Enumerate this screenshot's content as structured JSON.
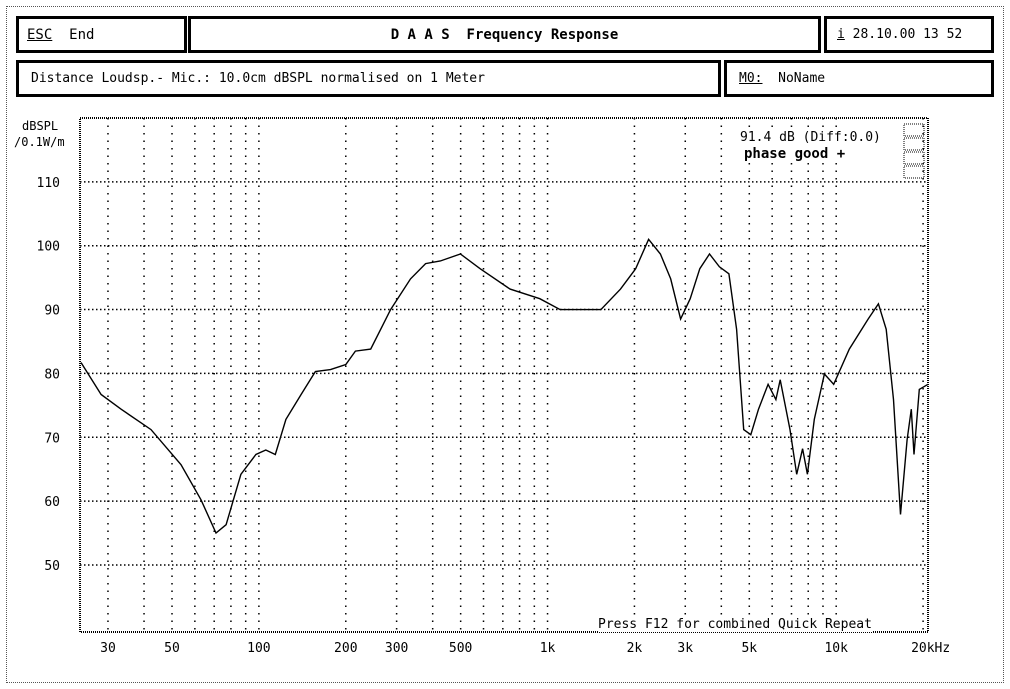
{
  "header": {
    "esc_key": "ESC",
    "esc_label": "End",
    "title": "D A A S  Frequency Response",
    "info_key": "i",
    "datetime": "28.10.00 13 52"
  },
  "info_bar": {
    "description": "Distance Loudsp.- Mic.: 10.0cm dBSPL normalised on 1 Meter",
    "memory_key": "M0:",
    "memory_name": "NoName"
  },
  "chart_data": {
    "type": "line",
    "ylabel_line1": "dBSPL",
    "ylabel_line2": "/0.1W/m",
    "xscale": "log",
    "xlim": [
      24,
      20800
    ],
    "ylim": [
      39.5,
      120
    ],
    "grid": true,
    "y_ticks": [
      50,
      60,
      70,
      80,
      90,
      100,
      110
    ],
    "x_ticks": [
      {
        "value": 30,
        "label": "30"
      },
      {
        "value": 50,
        "label": "50"
      },
      {
        "value": 100,
        "label": "100"
      },
      {
        "value": 200,
        "label": "200"
      },
      {
        "value": 300,
        "label": "300"
      },
      {
        "value": 500,
        "label": "500"
      },
      {
        "value": 1000,
        "label": "1k"
      },
      {
        "value": 2000,
        "label": "2k"
      },
      {
        "value": 3000,
        "label": "3k"
      },
      {
        "value": 5000,
        "label": "5k"
      },
      {
        "value": 10000,
        "label": "10k"
      },
      {
        "value": 20000,
        "label": "20kHz"
      }
    ],
    "annotation_level": "91.4 dB (Diff:0.0)",
    "annotation_phase": "phase good +",
    "footer_note": "Press F12 for combined Quick Repeat",
    "line_color": "#000000",
    "series": [
      {
        "x": [
          24.2,
          28.4,
          33.3,
          42.3,
          53.7,
          63,
          71,
          77,
          86.6,
          97.6,
          105.7,
          114,
          124,
          140,
          157,
          177,
          200,
          216,
          244,
          286,
          335,
          378,
          425,
          499,
          584,
          742,
          940,
          1105,
          1530,
          1790,
          2020,
          2240,
          2460,
          2670,
          2890,
          3120,
          3370,
          3640,
          3940,
          4250,
          4520,
          4780,
          5060,
          5380,
          5810,
          6180,
          6400,
          6920,
          7300,
          7650,
          7950,
          8400,
          9100,
          9800,
          11100,
          12900,
          14000,
          14900,
          15800,
          16700,
          17600,
          18200,
          18600,
          19400,
          20800
        ],
        "y": [
          81.7,
          76.7,
          74.4,
          71.2,
          65.7,
          60.2,
          55,
          56.3,
          64.2,
          67.3,
          68,
          67.3,
          72.8,
          76.7,
          80.3,
          80.6,
          81.4,
          83.5,
          83.8,
          90,
          94.8,
          97.2,
          97.6,
          98.7,
          96.4,
          93.2,
          91.7,
          90,
          90,
          93.2,
          96.4,
          101,
          98.7,
          94.8,
          88.5,
          91.7,
          96.4,
          98.7,
          96.7,
          95.6,
          86.9,
          71.2,
          70.4,
          74.4,
          78.3,
          75.9,
          79,
          71.2,
          64.2,
          68.2,
          64.2,
          72.8,
          79.9,
          78.3,
          83.8,
          88.5,
          90.9,
          86.9,
          75.9,
          57.9,
          69.6,
          74.4,
          67.3,
          77.5,
          78.3
        ]
      }
    ]
  }
}
